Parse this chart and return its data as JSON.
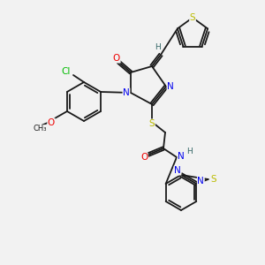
{
  "bg_color": "#f2f2f2",
  "bond_color": "#1a1a1a",
  "atom_colors": {
    "N": "#0000ee",
    "O": "#ee0000",
    "S": "#bbbb00",
    "Cl": "#00bb00",
    "H": "#336666",
    "C": "#1a1a1a"
  },
  "lw": 1.3,
  "fs": 6.5
}
